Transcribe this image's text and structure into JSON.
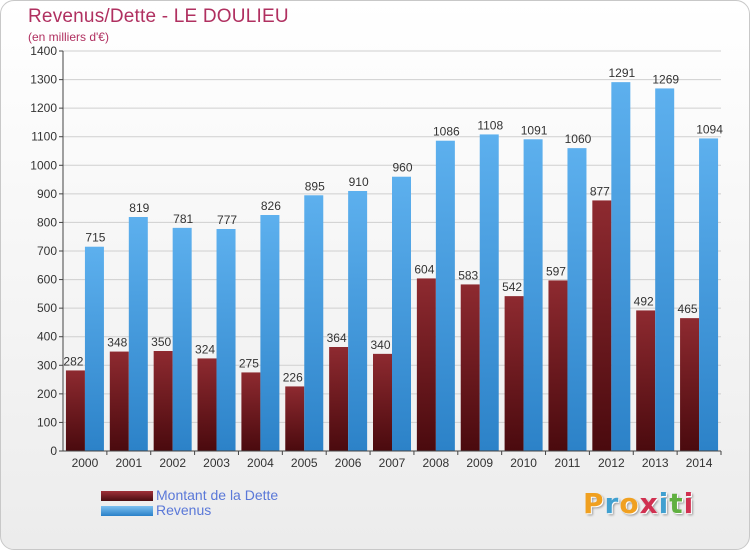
{
  "header": {
    "title": "Revenus/Dette - LE DOULIEU",
    "subtitle": "(en milliers d'€)"
  },
  "legend": {
    "items": [
      {
        "label": "Montant de la Dette",
        "color": "#7a1f24"
      },
      {
        "label": "Revenus",
        "color": "#4aa0e0"
      }
    ]
  },
  "brand": {
    "letters": [
      "P",
      "r",
      "o",
      "x",
      "i",
      "t",
      "i"
    ],
    "colors": [
      "#f0a020",
      "#40a0d0",
      "#f0a020",
      "#d03050",
      "#40a0d0",
      "#60b040",
      "#d03050"
    ]
  },
  "chart_data": {
    "type": "bar",
    "categories": [
      "2000",
      "2001",
      "2002",
      "2003",
      "2004",
      "2005",
      "2006",
      "2007",
      "2008",
      "2009",
      "2010",
      "2011",
      "2012",
      "2013",
      "2014"
    ],
    "series": [
      {
        "name": "Montant de la Dette",
        "color": "#7a1f24",
        "values": [
          282,
          348,
          350,
          324,
          275,
          226,
          364,
          340,
          604,
          583,
          542,
          597,
          877,
          492,
          465
        ]
      },
      {
        "name": "Revenus",
        "color": "#4aa0e0",
        "values": [
          715,
          819,
          781,
          777,
          826,
          895,
          910,
          960,
          1086,
          1108,
          1091,
          1060,
          1291,
          1269,
          1094
        ]
      }
    ],
    "ylim": [
      0,
      1400
    ],
    "yticks": [
      0,
      100,
      200,
      300,
      400,
      500,
      600,
      700,
      800,
      900,
      1000,
      1100,
      1200,
      1300,
      1400
    ],
    "grid": true,
    "legend_position": "bottom-left"
  }
}
